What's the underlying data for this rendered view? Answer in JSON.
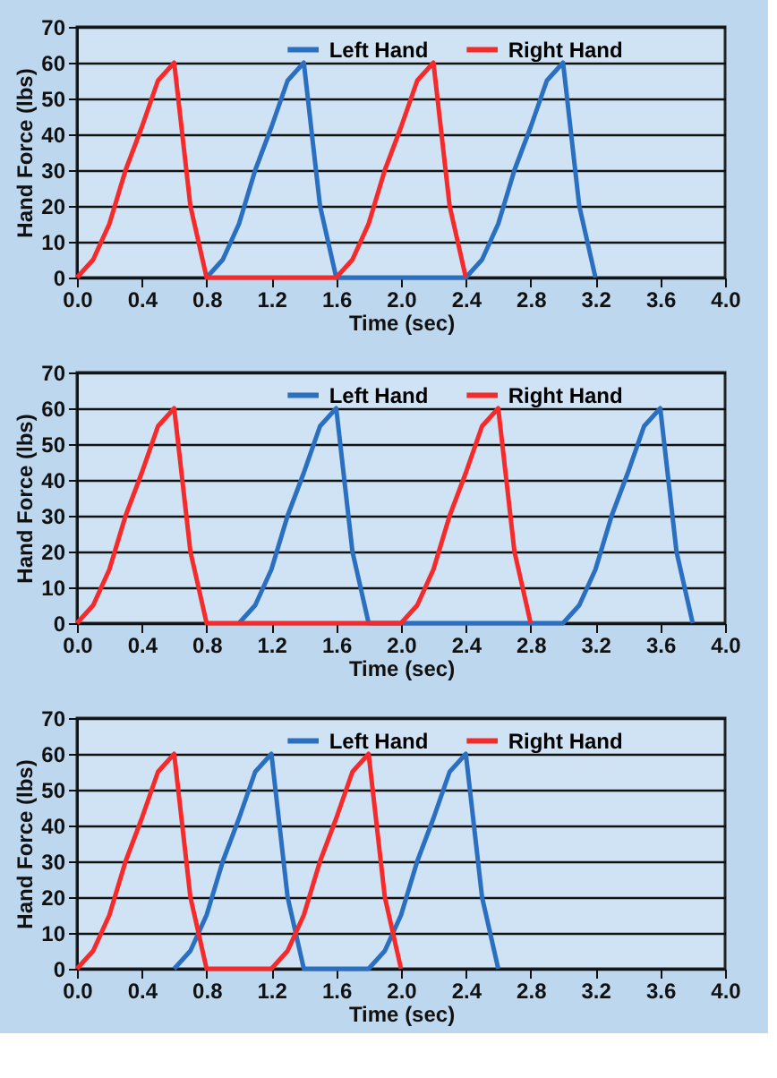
{
  "chart_data": [
    {
      "type": "line",
      "xlabel": "Time (sec)",
      "ylabel": "Hand Force (lbs)",
      "xlim": [
        0,
        4
      ],
      "ylim": [
        0,
        70
      ],
      "xticks": [
        {
          "value": 0,
          "label": "0.0"
        },
        0.4,
        0.8,
        1.2,
        1.6,
        {
          "value": 2,
          "label": "2.0"
        },
        2.4,
        2.8,
        3.2,
        3.6,
        {
          "value": 4,
          "label": "4.0"
        }
      ],
      "yticks": [
        0,
        10,
        20,
        30,
        40,
        50,
        60,
        70
      ],
      "grid": "y",
      "legend": "top",
      "marker": "none",
      "line_style": "solid",
      "series": [
        {
          "name": "Left Hand",
          "color": "#2a6fc0",
          "x": [
            0.8,
            0.9,
            1.0,
            1.1,
            1.2,
            1.3,
            1.4,
            1.5,
            1.6,
            2.4,
            2.5,
            2.6,
            2.7,
            2.8,
            2.9,
            3.0,
            3.1,
            3.2
          ],
          "values": [
            0,
            5,
            15,
            30,
            42,
            55,
            60,
            20,
            0,
            0,
            5,
            15,
            30,
            42,
            55,
            60,
            20,
            0
          ]
        },
        {
          "name": "Right Hand",
          "color": "#f52a2a",
          "x": [
            0,
            0.1,
            0.2,
            0.3,
            0.4,
            0.5,
            0.6,
            0.7,
            0.8,
            1.6,
            1.7,
            1.8,
            1.9,
            2.0,
            2.1,
            2.2,
            2.3,
            2.4
          ],
          "values": [
            0,
            5,
            15,
            30,
            42,
            55,
            60,
            20,
            0,
            0,
            5,
            15,
            30,
            42,
            55,
            60,
            20,
            0
          ]
        }
      ]
    },
    {
      "type": "line",
      "xlabel": "Time (sec)",
      "ylabel": "Hand Force (lbs)",
      "xlim": [
        0,
        4
      ],
      "ylim": [
        0,
        70
      ],
      "xticks": [
        {
          "value": 0,
          "label": "0.0"
        },
        0.4,
        0.8,
        1.2,
        1.6,
        {
          "value": 2,
          "label": "2.0"
        },
        2.4,
        2.8,
        3.2,
        3.6,
        {
          "value": 4,
          "label": "4.0"
        }
      ],
      "yticks": [
        0,
        10,
        20,
        30,
        40,
        50,
        60,
        70
      ],
      "grid": "y",
      "legend": "top",
      "marker": "none",
      "line_style": "solid",
      "series": [
        {
          "name": "Left Hand",
          "color": "#2a6fc0",
          "x": [
            1.0,
            1.1,
            1.2,
            1.3,
            1.4,
            1.5,
            1.6,
            1.7,
            1.8,
            3.0,
            3.1,
            3.2,
            3.3,
            3.4,
            3.5,
            3.6,
            3.7,
            3.8
          ],
          "values": [
            0,
            5,
            15,
            30,
            42,
            55,
            60,
            20,
            0,
            0,
            5,
            15,
            30,
            42,
            55,
            60,
            20,
            0
          ]
        },
        {
          "name": "Right Hand",
          "color": "#f52a2a",
          "x": [
            0,
            0.1,
            0.2,
            0.3,
            0.4,
            0.5,
            0.6,
            0.7,
            0.8,
            2.0,
            2.1,
            2.2,
            2.3,
            2.4,
            2.5,
            2.6,
            2.7,
            2.8
          ],
          "values": [
            0,
            5,
            15,
            30,
            42,
            55,
            60,
            20,
            0,
            0,
            5,
            15,
            30,
            42,
            55,
            60,
            20,
            0
          ]
        }
      ]
    },
    {
      "type": "line",
      "xlabel": "Time (sec)",
      "ylabel": "Hand Force (lbs)",
      "xlim": [
        0,
        4
      ],
      "ylim": [
        0,
        70
      ],
      "xticks": [
        {
          "value": 0,
          "label": "0.0"
        },
        0.4,
        0.8,
        1.2,
        1.6,
        {
          "value": 2,
          "label": "2.0"
        },
        2.4,
        2.8,
        3.2,
        3.6,
        {
          "value": 4,
          "label": "4.0"
        }
      ],
      "yticks": [
        0,
        10,
        20,
        30,
        40,
        50,
        60,
        70
      ],
      "grid": "y",
      "legend": "top",
      "marker": "none",
      "line_style": "solid",
      "series": [
        {
          "name": "Left Hand",
          "color": "#2a6fc0",
          "x": [
            0.6,
            0.7,
            0.8,
            0.9,
            1.0,
            1.1,
            1.2,
            1.3,
            1.4,
            1.8,
            1.9,
            2.0,
            2.1,
            2.2,
            2.3,
            2.4,
            2.5,
            2.6
          ],
          "values": [
            0,
            5,
            15,
            30,
            42,
            55,
            60,
            20,
            0,
            0,
            5,
            15,
            30,
            42,
            55,
            60,
            20,
            0
          ]
        },
        {
          "name": "Right Hand",
          "color": "#f52a2a",
          "x": [
            0,
            0.1,
            0.2,
            0.3,
            0.4,
            0.5,
            0.6,
            0.7,
            0.8,
            1.2,
            1.3,
            1.4,
            1.5,
            1.6,
            1.7,
            1.8,
            1.9,
            2.0
          ],
          "values": [
            0,
            5,
            15,
            30,
            42,
            55,
            60,
            20,
            0,
            0,
            5,
            15,
            30,
            42,
            55,
            60,
            20,
            0
          ]
        }
      ]
    }
  ]
}
